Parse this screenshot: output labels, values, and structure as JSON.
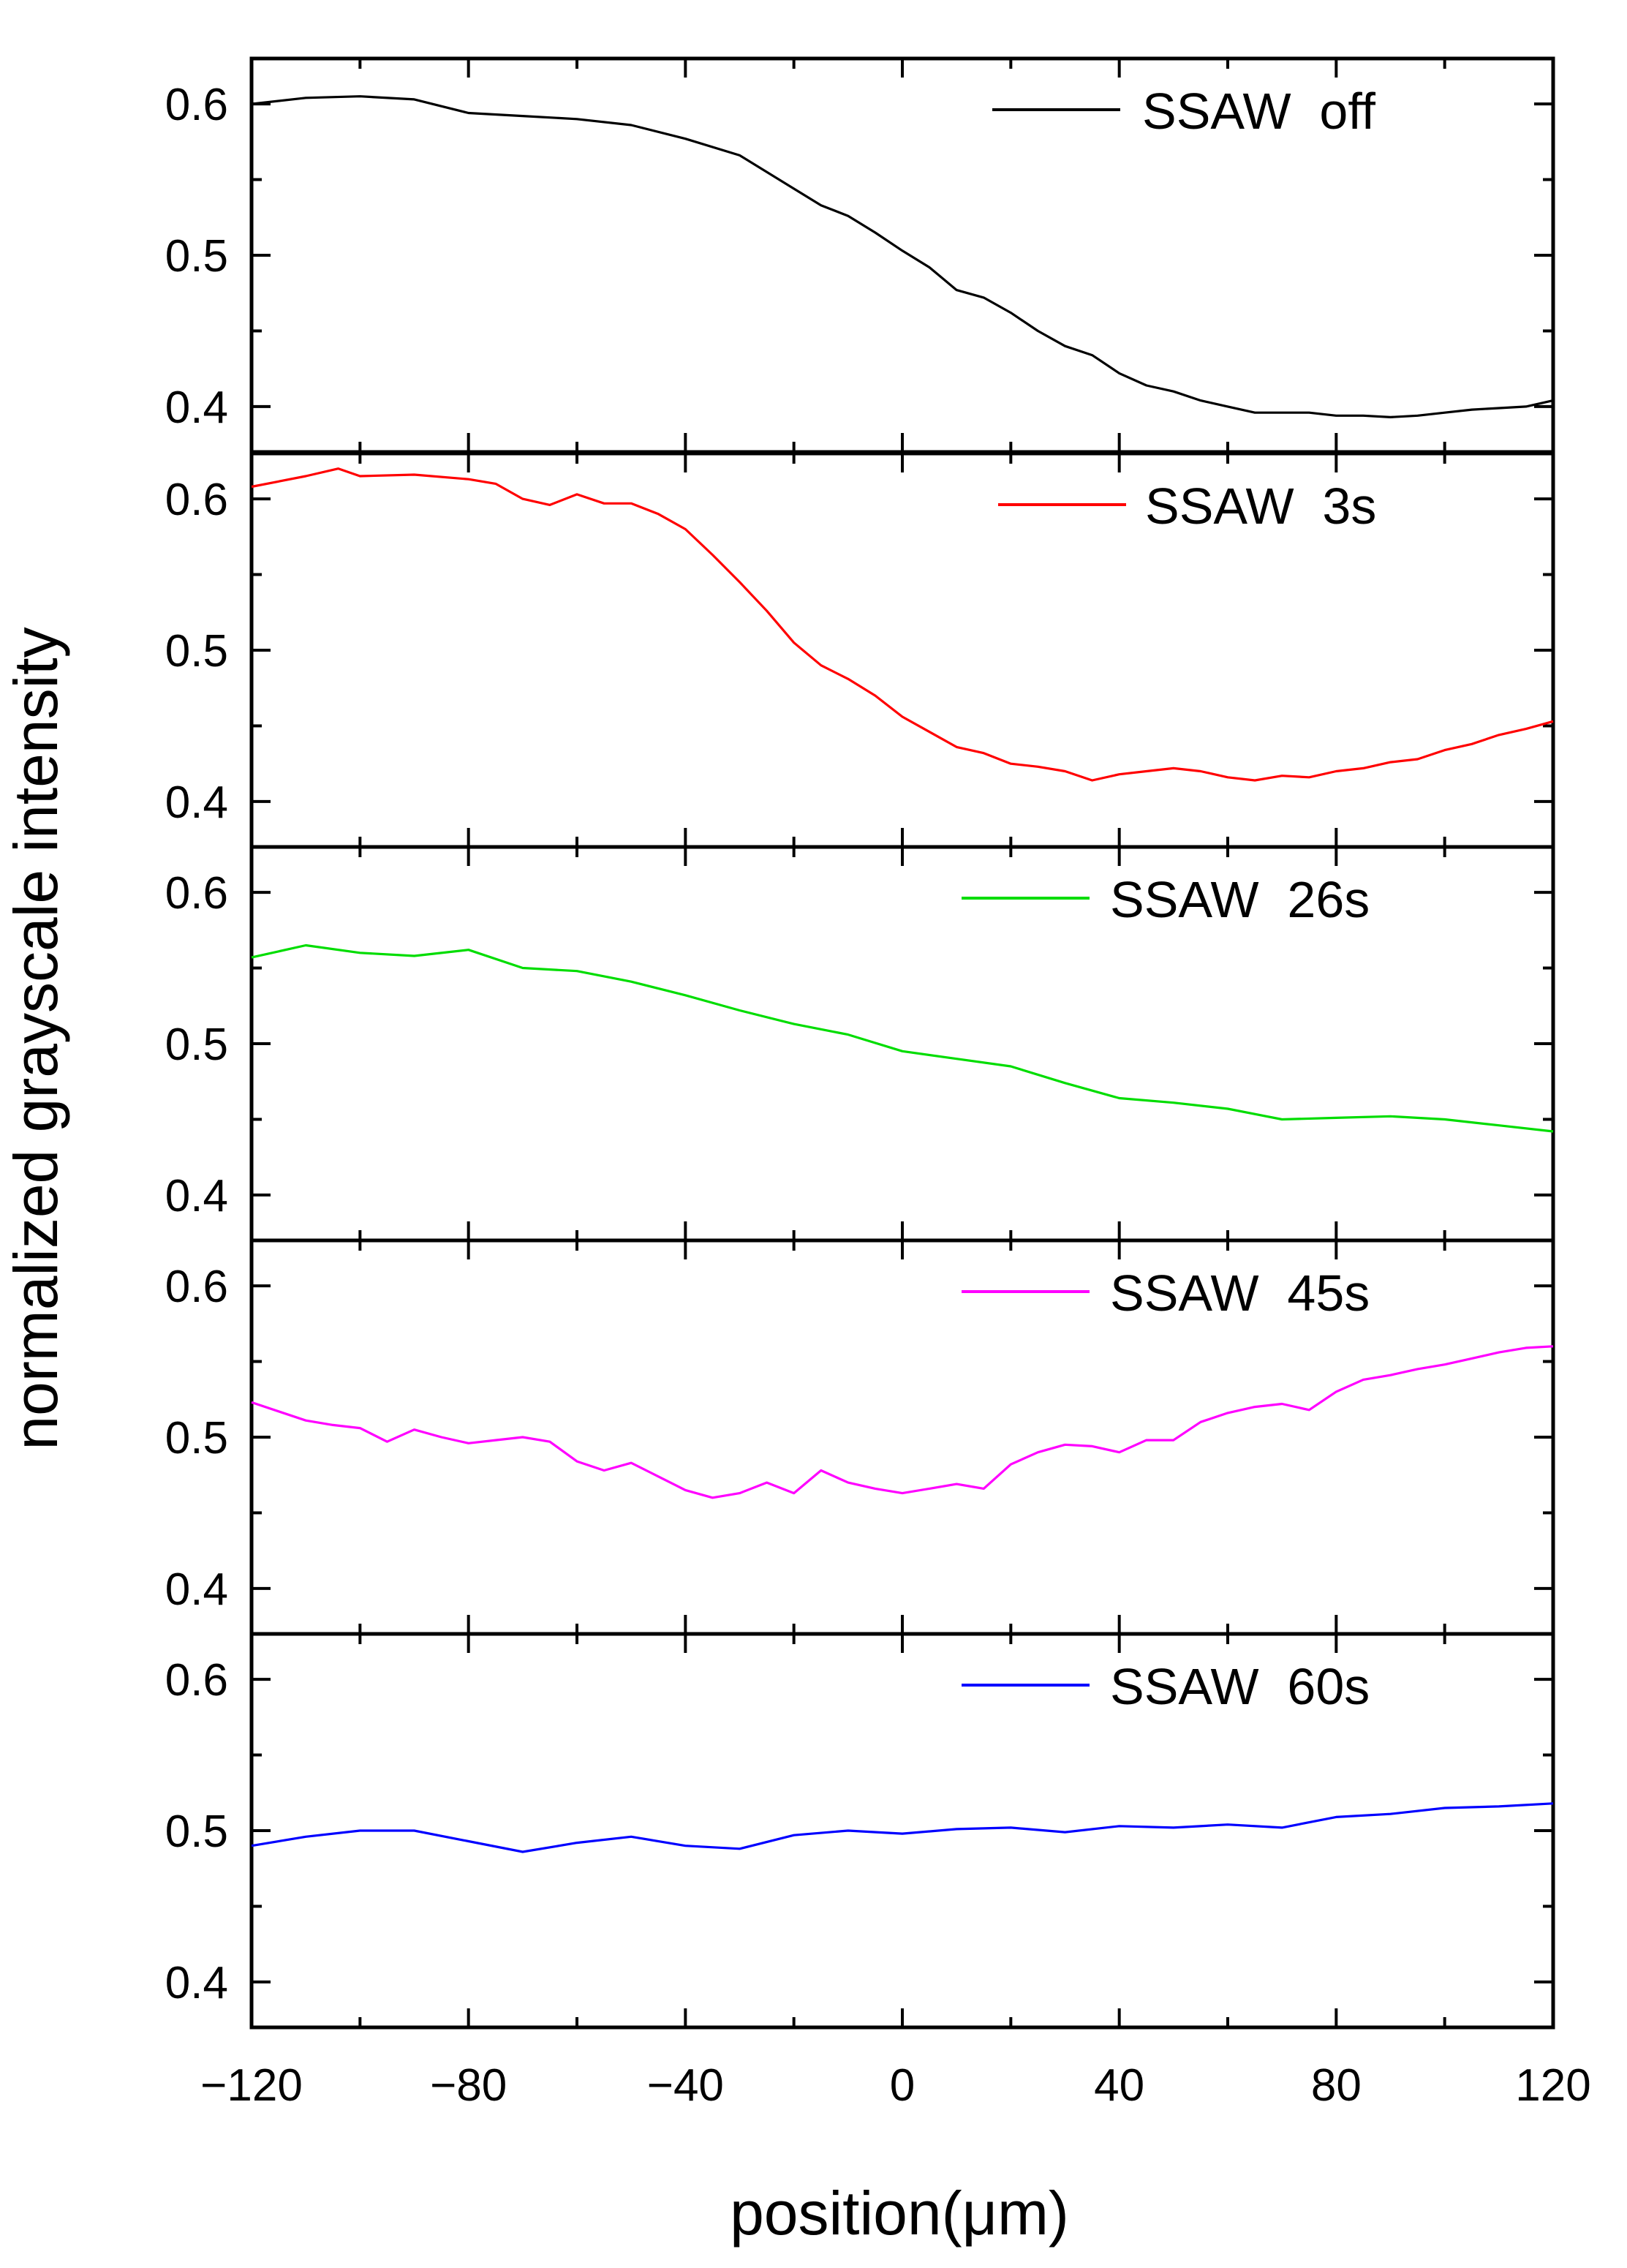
{
  "chart_data": {
    "type": "line",
    "layout": "stacked-panels",
    "xlabel": "position(μm)",
    "ylabel": "normalized grayscale intensity",
    "xlim": [
      -120,
      120
    ],
    "xticks": [
      -120,
      -80,
      -40,
      0,
      40,
      80,
      120
    ],
    "xtick_labels": [
      "−120",
      "−80",
      "−40",
      "0",
      "40",
      "80",
      "120"
    ],
    "ylim": [
      0.37,
      0.63
    ],
    "yticks": [
      0.4,
      0.5,
      0.6
    ],
    "ytick_labels": [
      "0.4",
      "0.5",
      "0.6"
    ],
    "grid": false,
    "legend_position": "top-right of each panel",
    "panels": [
      {
        "name": "SSAW off",
        "color": "#000000",
        "x": [
          -120,
          -110,
          -100,
          -90,
          -80,
          -70,
          -60,
          -50,
          -40,
          -30,
          -20,
          -15,
          -10,
          -5,
          0,
          5,
          10,
          15,
          20,
          25,
          30,
          35,
          40,
          45,
          50,
          55,
          60,
          65,
          70,
          75,
          80,
          85,
          90,
          95,
          100,
          105,
          110,
          115,
          120
        ],
        "y": [
          0.6,
          0.604,
          0.605,
          0.603,
          0.594,
          0.592,
          0.59,
          0.586,
          0.577,
          0.566,
          0.544,
          0.533,
          0.526,
          0.515,
          0.503,
          0.492,
          0.477,
          0.472,
          0.462,
          0.45,
          0.44,
          0.434,
          0.422,
          0.414,
          0.41,
          0.404,
          0.4,
          0.396,
          0.396,
          0.396,
          0.394,
          0.394,
          0.393,
          0.394,
          0.396,
          0.398,
          0.399,
          0.4,
          0.404
        ]
      },
      {
        "name": "SSAW 3s",
        "color": "#ff0000",
        "x": [
          -120,
          -110,
          -104,
          -100,
          -90,
          -80,
          -75,
          -70,
          -65,
          -60,
          -55,
          -50,
          -45,
          -40,
          -35,
          -30,
          -25,
          -20,
          -15,
          -10,
          -5,
          0,
          5,
          10,
          15,
          20,
          25,
          30,
          35,
          40,
          45,
          50,
          55,
          60,
          65,
          70,
          75,
          80,
          85,
          90,
          95,
          100,
          105,
          110,
          115,
          120
        ],
        "y": [
          0.608,
          0.615,
          0.62,
          0.615,
          0.616,
          0.613,
          0.61,
          0.6,
          0.596,
          0.603,
          0.597,
          0.597,
          0.59,
          0.58,
          0.563,
          0.545,
          0.526,
          0.505,
          0.49,
          0.481,
          0.47,
          0.456,
          0.446,
          0.436,
          0.432,
          0.425,
          0.423,
          0.42,
          0.414,
          0.418,
          0.42,
          0.422,
          0.42,
          0.416,
          0.414,
          0.417,
          0.416,
          0.42,
          0.422,
          0.426,
          0.428,
          0.434,
          0.438,
          0.444,
          0.448,
          0.453
        ]
      },
      {
        "name": "SSAW 26s",
        "color": "#00dd00",
        "x": [
          -120,
          -110,
          -100,
          -90,
          -80,
          -70,
          -60,
          -50,
          -40,
          -30,
          -20,
          -10,
          0,
          10,
          20,
          30,
          40,
          50,
          60,
          70,
          80,
          90,
          100,
          110,
          120
        ],
        "y": [
          0.557,
          0.565,
          0.56,
          0.558,
          0.562,
          0.55,
          0.548,
          0.541,
          0.532,
          0.522,
          0.513,
          0.506,
          0.495,
          0.49,
          0.485,
          0.474,
          0.464,
          0.461,
          0.457,
          0.45,
          0.451,
          0.452,
          0.45,
          0.446,
          0.442
        ]
      },
      {
        "name": "SSAW 45s",
        "color": "#ff00ff",
        "x": [
          -120,
          -115,
          -110,
          -105,
          -100,
          -95,
          -90,
          -85,
          -80,
          -75,
          -70,
          -65,
          -60,
          -55,
          -50,
          -45,
          -40,
          -35,
          -30,
          -25,
          -20,
          -15,
          -10,
          -5,
          0,
          5,
          10,
          15,
          20,
          25,
          30,
          35,
          40,
          45,
          50,
          55,
          60,
          65,
          70,
          75,
          80,
          85,
          90,
          95,
          100,
          105,
          110,
          115,
          120
        ],
        "y": [
          0.523,
          0.517,
          0.511,
          0.508,
          0.506,
          0.497,
          0.505,
          0.5,
          0.496,
          0.498,
          0.5,
          0.497,
          0.484,
          0.478,
          0.483,
          0.474,
          0.465,
          0.46,
          0.463,
          0.47,
          0.463,
          0.478,
          0.47,
          0.466,
          0.463,
          0.466,
          0.469,
          0.466,
          0.482,
          0.49,
          0.495,
          0.494,
          0.49,
          0.498,
          0.498,
          0.51,
          0.516,
          0.52,
          0.522,
          0.518,
          0.53,
          0.538,
          0.541,
          0.545,
          0.548,
          0.552,
          0.556,
          0.559,
          0.56
        ]
      },
      {
        "name": "SSAW 60s",
        "color": "#0000ff",
        "x": [
          -120,
          -110,
          -100,
          -90,
          -80,
          -70,
          -60,
          -50,
          -40,
          -30,
          -20,
          -10,
          0,
          10,
          20,
          30,
          40,
          50,
          60,
          70,
          80,
          90,
          100,
          110,
          120
        ],
        "y": [
          0.49,
          0.496,
          0.5,
          0.5,
          0.493,
          0.486,
          0.492,
          0.496,
          0.49,
          0.488,
          0.497,
          0.5,
          0.498,
          0.501,
          0.502,
          0.499,
          0.503,
          0.502,
          0.504,
          0.502,
          0.509,
          0.511,
          0.515,
          0.516,
          0.518
        ]
      }
    ]
  }
}
